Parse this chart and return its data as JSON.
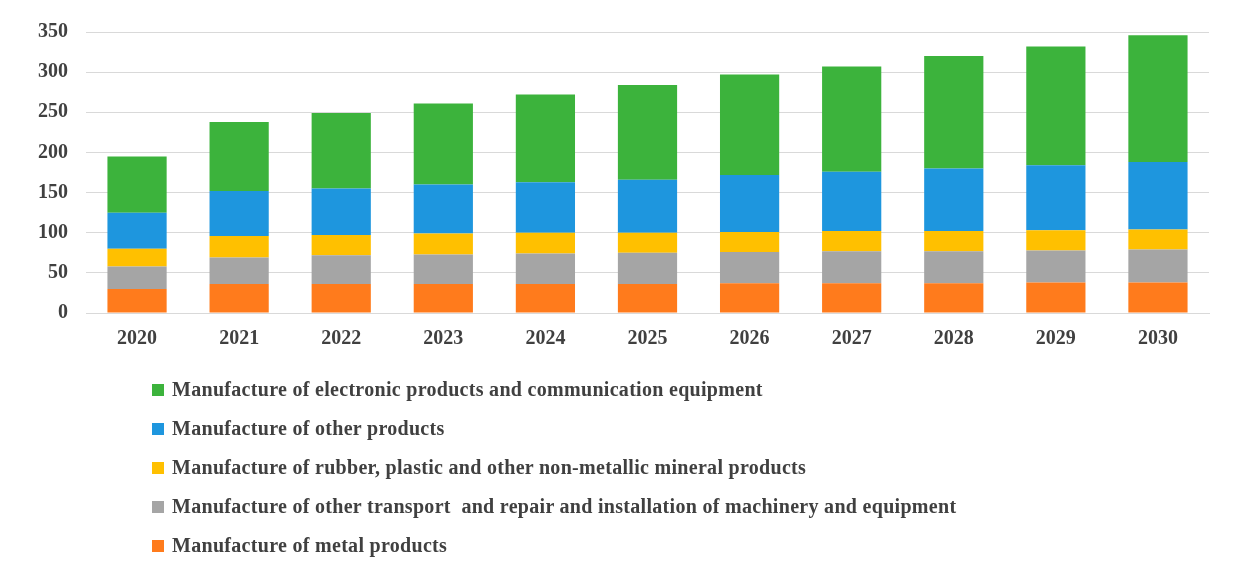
{
  "chart_data": {
    "type": "bar",
    "stacked": true,
    "categories": [
      "2020",
      "2021",
      "2022",
      "2023",
      "2024",
      "2025",
      "2026",
      "2027",
      "2028",
      "2029",
      "2030"
    ],
    "ylim": [
      0,
      350
    ],
    "yticks": [
      0,
      50,
      100,
      150,
      200,
      250,
      300,
      350
    ],
    "grid": "y",
    "legend": "bottom",
    "series": [
      {
        "name": "Manufacture of metal products",
        "color": "#ff7b1c",
        "values": [
          30,
          36,
          36,
          36,
          36,
          36,
          37,
          37,
          37,
          38,
          38
        ]
      },
      {
        "name": "Manufacture of other transport  and repair and installation of machinery and equipment",
        "color": "#a5a5a5",
        "values": [
          28,
          33,
          36,
          37,
          38,
          39,
          39,
          40,
          40,
          40,
          41
        ]
      },
      {
        "name": "Manufacture of rubber, plastic and other non-metallic mineral products",
        "color": "#ffc000",
        "values": [
          22,
          27,
          25,
          26,
          26,
          25,
          25,
          25,
          25,
          25,
          25
        ]
      },
      {
        "name": "Manufacture of other products",
        "color": "#1e96de",
        "values": [
          45,
          56,
          58,
          61,
          63,
          66,
          71,
          74,
          78,
          81,
          84
        ]
      },
      {
        "name": "Manufacture of electronic products and communication equipment",
        "color": "#3cb33c",
        "values": [
          70,
          86,
          94,
          101,
          109,
          118,
          125,
          131,
          140,
          148,
          158
        ]
      }
    ]
  }
}
